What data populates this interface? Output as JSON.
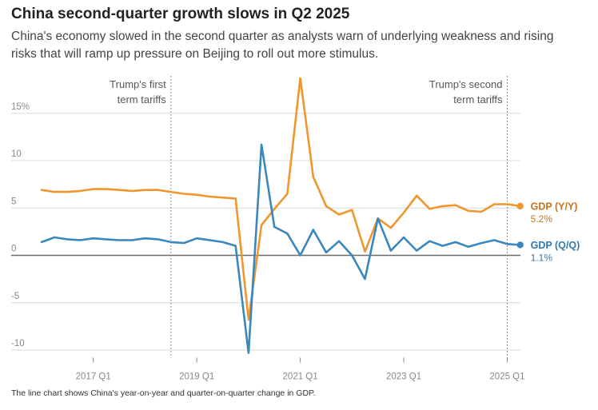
{
  "title": "China second-quarter growth slows in Q2 2025",
  "subtitle": "China's economy slowed in the second quarter as analysts warn of underlying weakness and rising risks that will ramp up pressure on Beijing to roll out more stimulus.",
  "footnote": "The line chart shows China's year-on-year and quarter-on-quarter change in GDP.",
  "colors": {
    "yoy": "#f0962e",
    "qoq": "#3a87bd",
    "yoy_label": "#c8731c",
    "qoq_label": "#2f7ab2"
  },
  "chart_data": {
    "type": "line",
    "x": [
      "2016 Q1",
      "2016 Q2",
      "2016 Q3",
      "2016 Q4",
      "2017 Q1",
      "2017 Q2",
      "2017 Q3",
      "2017 Q4",
      "2018 Q1",
      "2018 Q2",
      "2018 Q3",
      "2018 Q4",
      "2019 Q1",
      "2019 Q2",
      "2019 Q3",
      "2019 Q4",
      "2020 Q1",
      "2020 Q2",
      "2020 Q3",
      "2020 Q4",
      "2021 Q1",
      "2021 Q2",
      "2021 Q3",
      "2021 Q4",
      "2022 Q1",
      "2022 Q2",
      "2022 Q3",
      "2022 Q4",
      "2023 Q1",
      "2023 Q2",
      "2023 Q3",
      "2023 Q4",
      "2024 Q1",
      "2024 Q2",
      "2024 Q3",
      "2024 Q4",
      "2025 Q1",
      "2025 Q2"
    ],
    "x_tick_labels": [
      "2017 Q1",
      "2019 Q1",
      "2021 Q1",
      "2023 Q1",
      "2025 Q1"
    ],
    "x_tick_positions": [
      "2017 Q1",
      "2019 Q1",
      "2021 Q1",
      "2023 Q1",
      "2025 Q1"
    ],
    "y_tick_labels": [
      "15%",
      "10",
      "5",
      "0",
      "-5",
      "-10"
    ],
    "y_tick_values": [
      15,
      10,
      5,
      0,
      -5,
      -10
    ],
    "ylim": [
      -10.8,
      16.5
    ],
    "grid": true,
    "series": [
      {
        "name": "GDP (Y/Y)",
        "end_label": "5.2%",
        "values": [
          6.9,
          6.7,
          6.7,
          6.8,
          7.0,
          7.0,
          6.9,
          6.8,
          6.9,
          6.9,
          6.7,
          6.5,
          6.4,
          6.2,
          6.1,
          6.0,
          -6.8,
          3.2,
          4.9,
          6.5,
          18.7,
          8.3,
          5.2,
          4.3,
          4.8,
          0.4,
          3.9,
          2.9,
          4.5,
          6.3,
          4.9,
          5.2,
          5.3,
          4.7,
          4.6,
          5.4,
          5.4,
          5.2
        ]
      },
      {
        "name": "GDP (Q/Q)",
        "end_label": "1.1%",
        "values": [
          1.4,
          1.9,
          1.7,
          1.6,
          1.8,
          1.7,
          1.6,
          1.6,
          1.8,
          1.7,
          1.4,
          1.3,
          1.8,
          1.6,
          1.4,
          1.0,
          -10.3,
          11.7,
          3.0,
          2.3,
          0.0,
          2.7,
          0.3,
          1.5,
          0.0,
          -2.5,
          3.9,
          0.5,
          1.9,
          0.5,
          1.5,
          1.0,
          1.4,
          0.9,
          1.3,
          1.6,
          1.2,
          1.1
        ]
      }
    ],
    "annotations": [
      {
        "at": "2018 Q3",
        "lines": [
          "Trump's first",
          "term tariffs"
        ]
      },
      {
        "at": "2025 Q1",
        "lines": [
          "Trump's second",
          "term tariffs"
        ]
      }
    ]
  }
}
